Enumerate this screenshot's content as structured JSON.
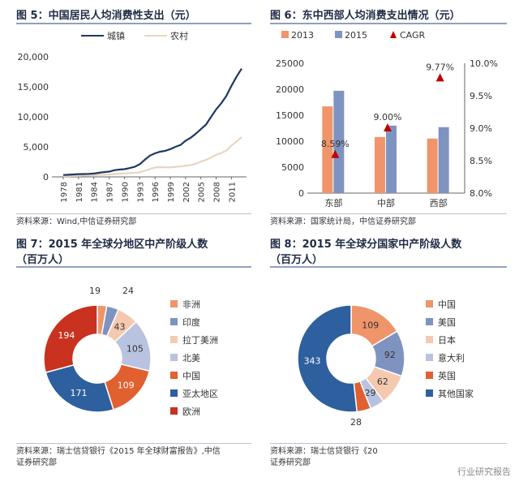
{
  "fig5": {
    "title": "图 5：中国居民人均消费性支出（元）",
    "source": "资料来源：Wind,中信证券研究部"
  },
  "fig6": {
    "title": "图 6：东中西部人均消费支出情况（元）",
    "source": "资料来源：国家统计局，中信证券研究部"
  },
  "fig7": {
    "title": "图 7：2015 年全球分地区中产阶级人数",
    "subtitle": "（百万人）",
    "source_line1": "资料来源：瑞士信贷银行《2015 年全球财富报告》,中信",
    "source_line2": "证券研究部"
  },
  "fig8": {
    "title": "图 8：2015 年全球分国家中产阶级人数",
    "subtitle": "（百万人）",
    "source_line1": "资料来源：瑞士信贷银行《20",
    "source_line2": "证券研究部"
  },
  "watermark": "行业研究报告",
  "chart_data": [
    {
      "id": "fig5",
      "type": "line",
      "title": "图 5：中国居民人均消费性支出（元）",
      "x": [
        1978,
        1979,
        1980,
        1981,
        1982,
        1983,
        1984,
        1985,
        1986,
        1987,
        1988,
        1989,
        1990,
        1991,
        1992,
        1993,
        1994,
        1995,
        1996,
        1997,
        1998,
        1999,
        2000,
        2001,
        2002,
        2003,
        2004,
        2005,
        2006,
        2007,
        2008,
        2009,
        2010,
        2011,
        2012,
        2013
      ],
      "xticks": [
        "1978",
        "1981",
        "1984",
        "1987",
        "1990",
        "1993",
        "1996",
        "1999",
        "2002",
        "2005",
        "2008",
        "2011"
      ],
      "yticks": [
        "0",
        "5,000",
        "10,000",
        "15,000",
        "20,000"
      ],
      "ylim": [
        0,
        20000
      ],
      "series": [
        {
          "name": "城镇",
          "color": "#1f3864",
          "values": [
            311,
            350,
            412,
            457,
            471,
            506,
            559,
            673,
            799,
            884,
            1104,
            1211,
            1279,
            1454,
            1672,
            2111,
            2851,
            3538,
            3919,
            4186,
            4332,
            4616,
            4998,
            5309,
            6030,
            6511,
            7182,
            7943,
            8697,
            9997,
            11243,
            12265,
            13471,
            15161,
            16674,
            18023
          ]
        },
        {
          "name": "农村",
          "color": "#e8d5c0",
          "values": [
            116,
            135,
            162,
            191,
            220,
            248,
            274,
            317,
            357,
            398,
            477,
            535,
            585,
            620,
            659,
            770,
            1017,
            1310,
            1572,
            1617,
            1590,
            1577,
            1670,
            1741,
            1834,
            1943,
            2185,
            2555,
            2829,
            3224,
            3661,
            3993,
            4382,
            5221,
            5908,
            6626
          ]
        }
      ]
    },
    {
      "id": "fig6",
      "type": "bar",
      "title": "图 6：东中西部人均消费支出情况（元）",
      "categories": [
        "东部",
        "中部",
        "西部"
      ],
      "series": [
        {
          "name": "2013",
          "color": "#f0956a",
          "values": [
            16700,
            10800,
            10500
          ]
        },
        {
          "name": "2015",
          "color": "#7f93c0",
          "values": [
            19700,
            13000,
            12700
          ]
        },
        {
          "name": "CAGR",
          "color": "#c00000",
          "type": "marker",
          "axis": "right",
          "values": [
            8.59,
            9.0,
            9.77
          ],
          "labels": [
            "8.59%",
            "9.00%",
            "9.77%"
          ]
        }
      ],
      "ylim": [
        0,
        25000
      ],
      "yticks": [
        "0",
        "5000",
        "10000",
        "15000",
        "20000",
        "25000"
      ],
      "y2lim": [
        8.0,
        10.0
      ],
      "y2ticks": [
        "8.0%",
        "8.5%",
        "9.0%",
        "9.5%",
        "10.0%"
      ]
    },
    {
      "id": "fig7",
      "type": "pie",
      "title": "图 7：2015 年全球分地区中产阶级人数",
      "labels": [
        "非洲",
        "印度",
        "拉丁美洲",
        "北美",
        "中国",
        "亚太地区",
        "欧洲"
      ],
      "values": [
        19,
        24,
        43,
        105,
        109,
        171,
        194
      ],
      "colors": [
        "#f0956a",
        "#7f93c0",
        "#f5c9b0",
        "#b9c3e0",
        "#e06030",
        "#2e5f9e",
        "#c8321f"
      ]
    },
    {
      "id": "fig8",
      "type": "pie",
      "title": "图 8：2015 年全球分国家中产阶级人数",
      "labels": [
        "中国",
        "美国",
        "日本",
        "意大利",
        "英国",
        "其他国家"
      ],
      "values": [
        109,
        92,
        62,
        29,
        28,
        343
      ],
      "colors": [
        "#f0956a",
        "#7f93c0",
        "#f5c9b0",
        "#b9c3e0",
        "#e06030",
        "#2e5f9e"
      ]
    }
  ]
}
